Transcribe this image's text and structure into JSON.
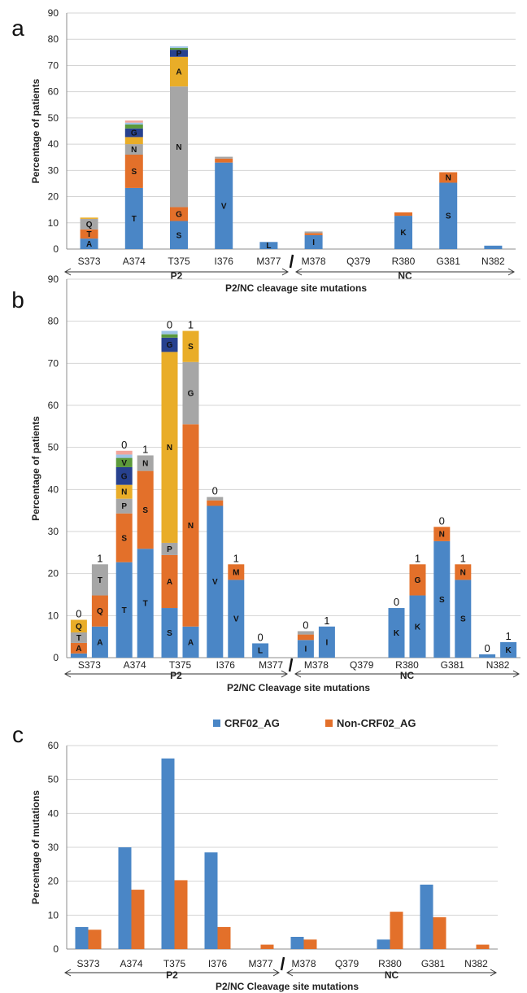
{
  "colors": {
    "blue": "#4a86c6",
    "orange": "#e3702a",
    "gray": "#a6a6a6",
    "yellow": "#e9ad28",
    "navy": "#27418f",
    "green": "#5c9a3b",
    "lightblue": "#9dc3e6",
    "pink": "#f2a49a",
    "grid": "#d4d4d4",
    "axis": "#8c8c8c"
  },
  "chart_data": [
    {
      "panel": "a",
      "type": "bar",
      "stacked": true,
      "categories": [
        "S373",
        "A374",
        "T375",
        "I376",
        "M377",
        "M378",
        "Q379",
        "R380",
        "G381",
        "N382"
      ],
      "ylabel": "Percentage of patients",
      "xlabel": "P2/NC cleavage site mutations",
      "region_labels": [
        "P2",
        "NC"
      ],
      "ylim": [
        0,
        90
      ],
      "yticks": [
        0,
        10,
        20,
        30,
        40,
        50,
        60,
        70,
        80,
        90
      ],
      "bars": [
        {
          "category": "S373",
          "segments": [
            {
              "label": "A",
              "value": 4,
              "color": "blue"
            },
            {
              "label": "T",
              "value": 3.5,
              "color": "orange"
            },
            {
              "label": "Q",
              "value": 4,
              "color": "gray"
            },
            {
              "label": "",
              "value": 0.5,
              "color": "yellow"
            }
          ]
        },
        {
          "category": "A374",
          "segments": [
            {
              "label": "T",
              "value": 23.3,
              "color": "blue"
            },
            {
              "label": "S",
              "value": 12.7,
              "color": "orange"
            },
            {
              "label": "N",
              "value": 4,
              "color": "gray"
            },
            {
              "label": "",
              "value": 2.7,
              "color": "yellow"
            },
            {
              "label": "G",
              "value": 3.3,
              "color": "navy"
            },
            {
              "label": "",
              "value": 1.5,
              "color": "green"
            },
            {
              "label": "",
              "value": 0.7,
              "color": "lightblue"
            },
            {
              "label": "",
              "value": 0.8,
              "color": "pink"
            }
          ]
        },
        {
          "category": "T375",
          "segments": [
            {
              "label": "S",
              "value": 10.7,
              "color": "blue"
            },
            {
              "label": "G",
              "value": 5.3,
              "color": "orange"
            },
            {
              "label": "N",
              "value": 46,
              "color": "gray"
            },
            {
              "label": "A",
              "value": 11.3,
              "color": "yellow"
            },
            {
              "label": "P",
              "value": 2.7,
              "color": "navy"
            },
            {
              "label": "",
              "value": 0.7,
              "color": "green"
            },
            {
              "label": "",
              "value": 0.6,
              "color": "lightblue"
            }
          ]
        },
        {
          "category": "I376",
          "segments": [
            {
              "label": "V",
              "value": 33,
              "color": "blue"
            },
            {
              "label": "",
              "value": 1.5,
              "color": "orange"
            },
            {
              "label": "",
              "value": 0.7,
              "color": "gray"
            }
          ]
        },
        {
          "category": "M377",
          "segments": [
            {
              "label": "L",
              "value": 2.7,
              "color": "blue"
            }
          ]
        },
        {
          "category": "M378",
          "segments": [
            {
              "label": "I",
              "value": 5.3,
              "color": "blue"
            },
            {
              "label": "",
              "value": 0.8,
              "color": "orange"
            },
            {
              "label": "",
              "value": 0.6,
              "color": "gray"
            }
          ]
        },
        {
          "category": "Q379",
          "segments": []
        },
        {
          "category": "R380",
          "segments": [
            {
              "label": "K",
              "value": 12.7,
              "color": "blue"
            },
            {
              "label": "",
              "value": 1.3,
              "color": "orange"
            }
          ]
        },
        {
          "category": "G381",
          "segments": [
            {
              "label": "S",
              "value": 25.3,
              "color": "blue"
            },
            {
              "label": "N",
              "value": 4,
              "color": "orange"
            }
          ]
        },
        {
          "category": "N382",
          "segments": [
            {
              "label": "",
              "value": 1.3,
              "color": "blue"
            }
          ]
        }
      ]
    },
    {
      "panel": "b",
      "type": "bar",
      "stacked": true,
      "categories": [
        "S373",
        "A374",
        "T375",
        "I376",
        "M377",
        "M378",
        "Q379",
        "R380",
        "G381",
        "N382"
      ],
      "ylabel": "Percentage of patients",
      "xlabel": "P2/NC Cleavage site mutations",
      "region_labels": [
        "P2",
        "NC"
      ],
      "ylim": [
        0,
        90
      ],
      "yticks": [
        0,
        10,
        20,
        30,
        40,
        50,
        60,
        70,
        80,
        90
      ],
      "bars": [
        {
          "category": "S373",
          "group": "0",
          "segments": [
            {
              "label": "",
              "value": 1,
              "color": "blue"
            },
            {
              "label": "A",
              "value": 2.5,
              "color": "orange"
            },
            {
              "label": "T",
              "value": 2.5,
              "color": "gray"
            },
            {
              "label": "Q",
              "value": 3,
              "color": "yellow"
            }
          ]
        },
        {
          "category": "S373",
          "group": "1",
          "segments": [
            {
              "label": "A",
              "value": 7.4,
              "color": "blue"
            },
            {
              "label": "Q",
              "value": 7.4,
              "color": "orange"
            },
            {
              "label": "T",
              "value": 7.4,
              "color": "gray"
            }
          ]
        },
        {
          "category": "A374",
          "group": "0",
          "segments": [
            {
              "label": "T",
              "value": 22.7,
              "color": "blue"
            },
            {
              "label": "S",
              "value": 11.6,
              "color": "orange"
            },
            {
              "label": "P",
              "value": 3.5,
              "color": "gray"
            },
            {
              "label": "N",
              "value": 3.3,
              "color": "yellow"
            },
            {
              "label": "G",
              "value": 4.2,
              "color": "navy"
            },
            {
              "label": "V",
              "value": 2.2,
              "color": "green"
            },
            {
              "label": "",
              "value": 0.8,
              "color": "lightblue"
            },
            {
              "label": "",
              "value": 0.9,
              "color": "pink"
            }
          ]
        },
        {
          "category": "A374",
          "group": "1",
          "segments": [
            {
              "label": "T",
              "value": 25.9,
              "color": "blue"
            },
            {
              "label": "S",
              "value": 18.5,
              "color": "orange"
            },
            {
              "label": "N",
              "value": 3.7,
              "color": "gray"
            }
          ]
        },
        {
          "category": "T375",
          "group": "0",
          "segments": [
            {
              "label": "S",
              "value": 11.8,
              "color": "blue"
            },
            {
              "label": "A",
              "value": 12.6,
              "color": "orange"
            },
            {
              "label": "P",
              "value": 2.9,
              "color": "gray"
            },
            {
              "label": "N",
              "value": 45.4,
              "color": "yellow"
            },
            {
              "label": "G",
              "value": 3.4,
              "color": "navy"
            },
            {
              "label": "",
              "value": 0.8,
              "color": "green"
            },
            {
              "label": "",
              "value": 0.8,
              "color": "lightblue"
            }
          ]
        },
        {
          "category": "T375",
          "group": "1",
          "segments": [
            {
              "label": "A",
              "value": 7.4,
              "color": "blue"
            },
            {
              "label": "N",
              "value": 48.1,
              "color": "orange"
            },
            {
              "label": "G",
              "value": 14.8,
              "color": "gray"
            },
            {
              "label": "S",
              "value": 7.4,
              "color": "yellow"
            }
          ]
        },
        {
          "category": "I376",
          "group": "0",
          "segments": [
            {
              "label": "V",
              "value": 36.1,
              "color": "blue"
            },
            {
              "label": "",
              "value": 1.3,
              "color": "orange"
            },
            {
              "label": "",
              "value": 0.8,
              "color": "gray"
            }
          ]
        },
        {
          "category": "I376",
          "group": "1",
          "segments": [
            {
              "label": "V",
              "value": 18.5,
              "color": "blue"
            },
            {
              "label": "M",
              "value": 3.7,
              "color": "orange"
            }
          ]
        },
        {
          "category": "M377",
          "group": "0",
          "segments": [
            {
              "label": "L",
              "value": 3.4,
              "color": "blue"
            }
          ]
        },
        {
          "category": "M378",
          "group": "0",
          "segments": [
            {
              "label": "I",
              "value": 4.2,
              "color": "blue"
            },
            {
              "label": "",
              "value": 1.3,
              "color": "orange"
            },
            {
              "label": "",
              "value": 0.8,
              "color": "gray"
            }
          ]
        },
        {
          "category": "M378",
          "group": "1",
          "segments": [
            {
              "label": "I",
              "value": 7.4,
              "color": "blue"
            }
          ]
        },
        {
          "category": "R380",
          "group": "0",
          "segments": [
            {
              "label": "K",
              "value": 11.8,
              "color": "blue"
            }
          ]
        },
        {
          "category": "R380",
          "group": "1",
          "segments": [
            {
              "label": "K",
              "value": 14.8,
              "color": "blue"
            },
            {
              "label": "G",
              "value": 7.4,
              "color": "orange"
            }
          ]
        },
        {
          "category": "G381",
          "group": "0",
          "segments": [
            {
              "label": "S",
              "value": 27.7,
              "color": "blue"
            },
            {
              "label": "N",
              "value": 3.4,
              "color": "orange"
            }
          ]
        },
        {
          "category": "G381",
          "group": "1",
          "segments": [
            {
              "label": "S",
              "value": 18.5,
              "color": "blue"
            },
            {
              "label": "N",
              "value": 3.7,
              "color": "orange"
            }
          ]
        },
        {
          "category": "N382",
          "group": "0",
          "segments": [
            {
              "label": "",
              "value": 0.8,
              "color": "blue"
            }
          ]
        },
        {
          "category": "N382",
          "group": "1",
          "segments": [
            {
              "label": "K",
              "value": 3.7,
              "color": "blue"
            }
          ]
        }
      ]
    },
    {
      "panel": "c",
      "type": "bar",
      "stacked": false,
      "categories": [
        "S373",
        "A374",
        "T375",
        "I376",
        "M377",
        "M378",
        "Q379",
        "R380",
        "G381",
        "N382"
      ],
      "ylabel": "Percentage of mutations",
      "xlabel": "P2/NC Cleavage site mutations",
      "region_labels": [
        "P2",
        "NC"
      ],
      "ylim": [
        0,
        60
      ],
      "yticks": [
        0,
        10,
        20,
        30,
        40,
        50,
        60
      ],
      "legend_position": "top",
      "series": [
        {
          "name": "CRF02_AG",
          "color": "blue",
          "values": [
            6.5,
            30,
            56.2,
            28.5,
            0,
            3.6,
            0,
            2.8,
            19,
            0
          ]
        },
        {
          "name": "Non-CRF02_AG",
          "color": "orange",
          "values": [
            5.7,
            17.5,
            20.3,
            6.5,
            1.3,
            2.8,
            0,
            11,
            9.4,
            1.3
          ]
        }
      ]
    }
  ]
}
